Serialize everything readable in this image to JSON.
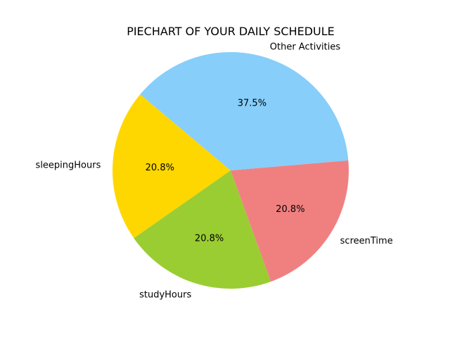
{
  "chart_data": {
    "type": "pie",
    "title": "PIECHART OF YOUR DAILY SCHEDULE",
    "categories": [
      "sleepingHours",
      "studyHours",
      "screenTime",
      "Other Activities"
    ],
    "values": [
      20.8,
      20.8,
      20.8,
      37.5
    ],
    "percent_labels": [
      "20.8%",
      "20.8%",
      "20.8%",
      "37.5%"
    ],
    "colors": [
      "#ffd700",
      "#9acd32",
      "#f08080",
      "#87cefa"
    ],
    "start_angle_deg": 140,
    "direction": "counterclockwise"
  }
}
